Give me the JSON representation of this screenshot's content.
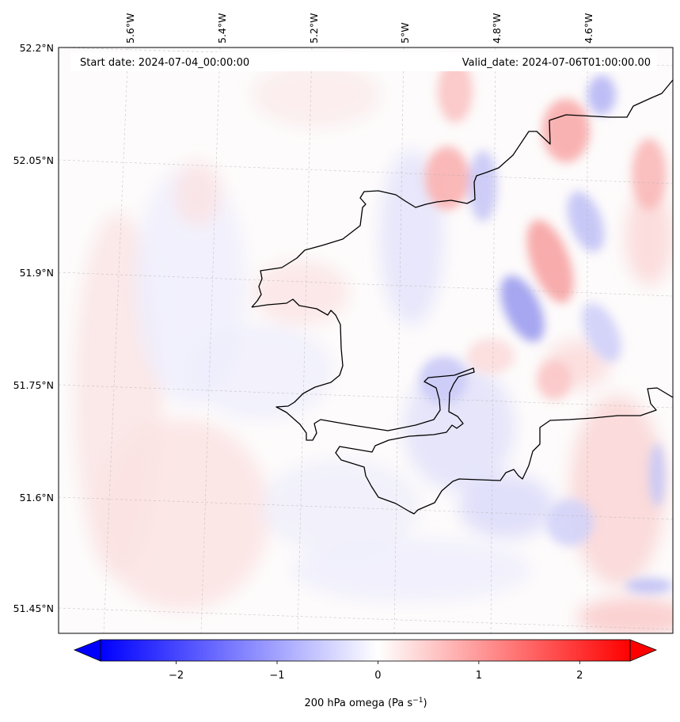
{
  "map": {
    "start_date_label": "Start date: 2024-07-04_00:00:00",
    "valid_date_label": "Valid_date: 2024-07-06T01:00:00.00",
    "field": "200 hPa omega",
    "lon_ticks": [
      "5.6°W",
      "5.4°W",
      "5.2°W",
      "5°W",
      "4.8°W",
      "4.6°W"
    ],
    "lat_ticks": [
      "52.2°N",
      "52.05°N",
      "51.9°N",
      "51.75°N",
      "51.6°N",
      "51.45°N"
    ],
    "extent": {
      "lon_min": -5.75,
      "lon_max": -4.45,
      "lat_min": 51.42,
      "lat_max": 52.2
    },
    "gridlines": true,
    "coastline_color": "#000000"
  },
  "colorbar": {
    "label": "200 hPa omega (Pa s",
    "label_sup": "−1",
    "label_close": ")",
    "ticks": [
      "−2",
      "−1",
      "0",
      "1",
      "2"
    ],
    "tick_values": [
      -2,
      -1,
      0,
      1,
      2
    ],
    "range": [
      -2.75,
      2.5
    ],
    "colormap": "bwr",
    "extend": "both",
    "low_color": "#0000ff",
    "mid_color": "#ffffff",
    "high_color": "#ff0000"
  }
}
